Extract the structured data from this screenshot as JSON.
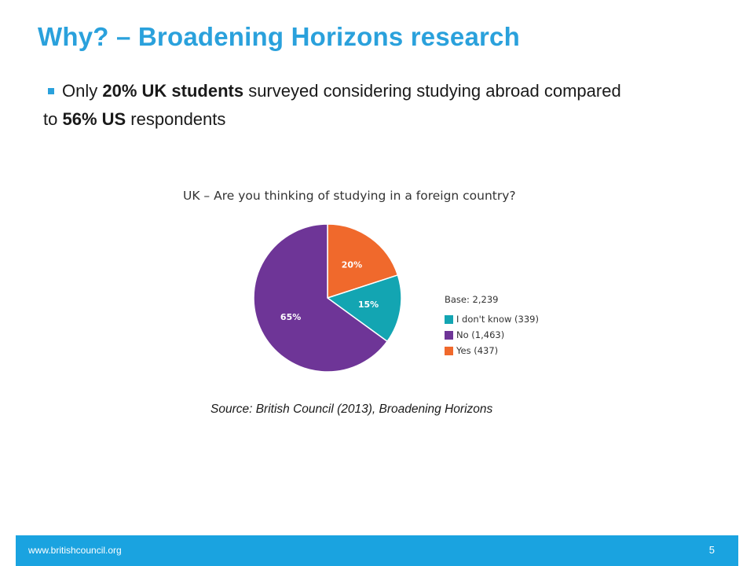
{
  "slide": {
    "title": "Why? – Broadening Horizons research",
    "bullet": {
      "parts": [
        "Only ",
        "20% UK students",
        " surveyed considering studying abroad compared to ",
        "56% US",
        " respondents"
      ]
    },
    "source": "Source: British Council (2013), Broadening Horizons"
  },
  "footer": {
    "url": "www.britishcouncil.org",
    "page_number": "5"
  },
  "chart_data": {
    "type": "pie",
    "title": "UK – Are you thinking of studying in a foreign country?",
    "base_label": "Base: 2,239",
    "slices": [
      {
        "label": "Yes (437)",
        "value": 20,
        "value_label": "20%",
        "color": "#f0692c"
      },
      {
        "label": "I don't know (339)",
        "value": 15,
        "value_label": "15%",
        "color": "#13a5b2"
      },
      {
        "label": "No (1,463)",
        "value": 65,
        "value_label": "65%",
        "color": "#6e3597"
      }
    ],
    "legend_order": [
      1,
      2,
      0
    ],
    "legend_placement": "right"
  }
}
